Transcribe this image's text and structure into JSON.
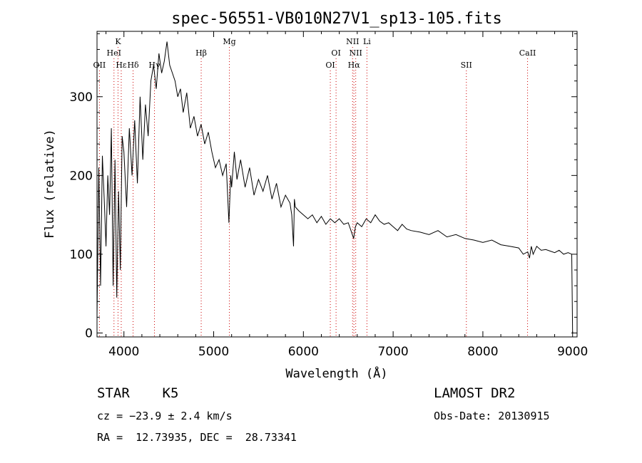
{
  "chart_data": {
    "type": "line",
    "title": "spec-56551-VB010N27V1_sp13-105.fits",
    "xlabel": "Wavelength (Å)",
    "ylabel": "Flux (relative)",
    "xlim": [
      3700,
      9050
    ],
    "ylim": [
      -5,
      383
    ],
    "xticks": [
      4000,
      5000,
      6000,
      7000,
      8000,
      9000
    ],
    "yticks": [
      0,
      100,
      200,
      300
    ],
    "grid": false,
    "line_color": "#000000",
    "marker_color": "#cc0000",
    "spectral_lines": [
      {
        "label": "OII",
        "wavelength": 3727,
        "row": 3
      },
      {
        "label": "K",
        "wavelength": 3934,
        "row": 1
      },
      {
        "label": "HeI",
        "wavelength": 3889,
        "row": 2
      },
      {
        "label": "Hε",
        "wavelength": 3970,
        "row": 3
      },
      {
        "label": "Hδ",
        "wavelength": 4102,
        "row": 3
      },
      {
        "label": "Hγ",
        "wavelength": 4340,
        "row": 3
      },
      {
        "label": "Hβ",
        "wavelength": 4861,
        "row": 2
      },
      {
        "label": "Mg",
        "wavelength": 5175,
        "row": 1
      },
      {
        "label": "OI",
        "wavelength": 6300,
        "row": 3
      },
      {
        "label": "OI",
        "wavelength": 6364,
        "row": 2
      },
      {
        "label": "NII",
        "wavelength": 6548,
        "row": 1
      },
      {
        "label": "NII",
        "wavelength": 6583,
        "row": 2
      },
      {
        "label": "Hα",
        "wavelength": 6563,
        "row": 3
      },
      {
        "label": "Li",
        "wavelength": 6708,
        "row": 1
      },
      {
        "label": "SII",
        "wavelength": 7816,
        "row": 3
      },
      {
        "label": "CaII",
        "wavelength": 8498,
        "row": 2
      }
    ],
    "series": [
      {
        "x": [
          3700,
          3720,
          3740,
          3760,
          3780,
          3800,
          3820,
          3840,
          3860,
          3880,
          3900,
          3920,
          3940,
          3960,
          3980,
          4000,
          4030,
          4060,
          4090,
          4120,
          4150,
          4180,
          4210,
          4240,
          4270,
          4300,
          4330,
          4360,
          4390,
          4420,
          4450,
          4480,
          4510,
          4540,
          4570,
          4600,
          4630,
          4660,
          4700,
          4740,
          4780,
          4820,
          4860,
          4900,
          4940,
          4980,
          5020,
          5060,
          5100,
          5140,
          5170,
          5190,
          5200,
          5230,
          5260,
          5300,
          5350,
          5400,
          5450,
          5500,
          5550,
          5600,
          5650,
          5700,
          5750,
          5800,
          5850,
          5870,
          5890,
          5900,
          5910,
          5950,
          6000,
          6050,
          6100,
          6150,
          6200,
          6250,
          6300,
          6350,
          6400,
          6450,
          6500,
          6530,
          6560,
          6580,
          6600,
          6650,
          6700,
          6750,
          6800,
          6850,
          6900,
          6950,
          7000,
          7050,
          7100,
          7150,
          7200,
          7300,
          7400,
          7500,
          7600,
          7700,
          7800,
          7900,
          8000,
          8100,
          8200,
          8300,
          8400,
          8450,
          8500,
          8520,
          8540,
          8560,
          8600,
          8650,
          8700,
          8750,
          8800,
          8850,
          8900,
          8950,
          8990,
          9000
        ],
        "y": [
          20,
          210,
          60,
          225,
          170,
          110,
          200,
          150,
          260,
          60,
          220,
          45,
          180,
          80,
          250,
          230,
          160,
          260,
          200,
          270,
          190,
          300,
          220,
          290,
          250,
          320,
          340,
          310,
          355,
          330,
          345,
          370,
          340,
          330,
          320,
          300,
          310,
          280,
          305,
          260,
          275,
          250,
          265,
          240,
          255,
          230,
          210,
          220,
          200,
          215,
          140,
          200,
          185,
          230,
          195,
          220,
          185,
          210,
          175,
          195,
          180,
          200,
          170,
          190,
          160,
          175,
          165,
          150,
          110,
          170,
          160,
          155,
          150,
          145,
          150,
          140,
          148,
          138,
          145,
          140,
          145,
          138,
          140,
          130,
          120,
          135,
          140,
          135,
          145,
          140,
          150,
          142,
          138,
          140,
          135,
          130,
          138,
          132,
          130,
          128,
          125,
          130,
          122,
          125,
          120,
          118,
          115,
          118,
          112,
          110,
          108,
          100,
          103,
          95,
          110,
          100,
          110,
          105,
          106,
          104,
          102,
          105,
          100,
          102,
          100,
          0
        ]
      }
    ]
  },
  "info": {
    "class_line": "STAR    K5",
    "survey": "LAMOST DR2",
    "cz": "cz = −23.9 ± 2.4 km/s",
    "obs_date": "Obs-Date: 20130915",
    "radec": "RA =  12.73935, DEC =  28.73341"
  }
}
